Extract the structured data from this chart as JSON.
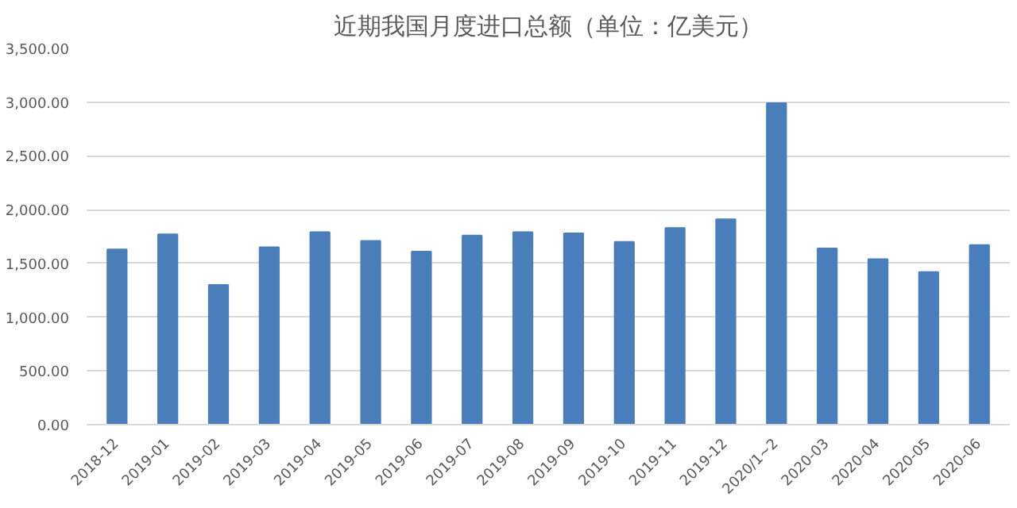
{
  "chart_data": {
    "type": "bar",
    "title": "近期我国月度进口总额（单位：亿美元）",
    "categories": [
      "2018-12",
      "2019-01",
      "2019-02",
      "2019-03",
      "2019-04",
      "2019-05",
      "2019-06",
      "2019-07",
      "2019-08",
      "2019-09",
      "2019-10",
      "2019-11",
      "2019-12",
      "2020/1~2",
      "2020-03",
      "2020-04",
      "2020-05",
      "2020-06"
    ],
    "values": [
      1630,
      1770,
      1300,
      1650,
      1790,
      1710,
      1610,
      1760,
      1790,
      1780,
      1700,
      1830,
      1910,
      2990,
      1640,
      1540,
      1420,
      1670
    ],
    "color": "#4a7ebb",
    "ylim": [
      0,
      3500
    ],
    "yticks": [
      {
        "value": 0,
        "label": "0.00"
      },
      {
        "value": 500,
        "label": "500.00"
      },
      {
        "value": 1000,
        "label": "1,000.00"
      },
      {
        "value": 1500,
        "label": "1,500.00"
      },
      {
        "value": 2000,
        "label": "2,000.00"
      },
      {
        "value": 2500,
        "label": "2,500.00"
      },
      {
        "value": 3000,
        "label": "3,000.00"
      },
      {
        "value": 3500,
        "label": "3,500.00"
      }
    ],
    "grid": "y"
  }
}
